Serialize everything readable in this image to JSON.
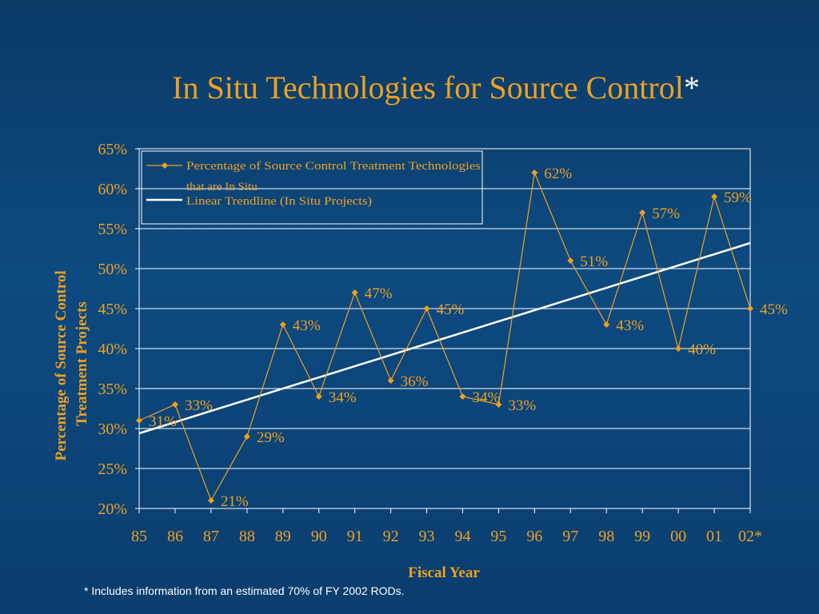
{
  "slide": {
    "title": "In Situ Technologies for Source Control",
    "title_mark": "*",
    "footnote": "* Includes information from an estimated 70% of FY 2002 RODs."
  },
  "colors": {
    "background": "#0d4a80",
    "accent": "#f0a020",
    "trendline": "#ffffff",
    "grid": "#ffffff"
  },
  "chart_data": {
    "type": "line",
    "xlabel": "Fiscal Year",
    "ylabel": "Percentage of Source Control Treatment Projects",
    "ylim": [
      20,
      65
    ],
    "yticks": [
      "20%",
      "25%",
      "30%",
      "35%",
      "40%",
      "45%",
      "50%",
      "55%",
      "60%",
      "65%"
    ],
    "categories": [
      "85",
      "86",
      "87",
      "88",
      "89",
      "90",
      "91",
      "92",
      "93",
      "94",
      "95",
      "96",
      "97",
      "98",
      "99",
      "00",
      "01",
      "02*"
    ],
    "grid": true,
    "legend_position": "top-left",
    "series": [
      {
        "name": "Percentage of Source Control Treatment Technologies that are In Situ",
        "values": [
          31,
          33,
          21,
          29,
          43,
          34,
          47,
          36,
          45,
          34,
          33,
          62,
          51,
          43,
          57,
          40,
          59,
          45
        ],
        "labels": [
          "31%",
          "33%",
          "21%",
          "29%",
          "43%",
          "34%",
          "47%",
          "36%",
          "45%",
          "34%",
          "33%",
          "62%",
          "51%",
          "43%",
          "57%",
          "40%",
          "59%",
          "45%"
        ],
        "color": "#f0a020",
        "marker": "diamond"
      },
      {
        "name": "Linear Trendline (In Situ Projects)",
        "trend": true,
        "start": 29.4,
        "end": 53.2,
        "color": "#ffffff"
      }
    ]
  }
}
